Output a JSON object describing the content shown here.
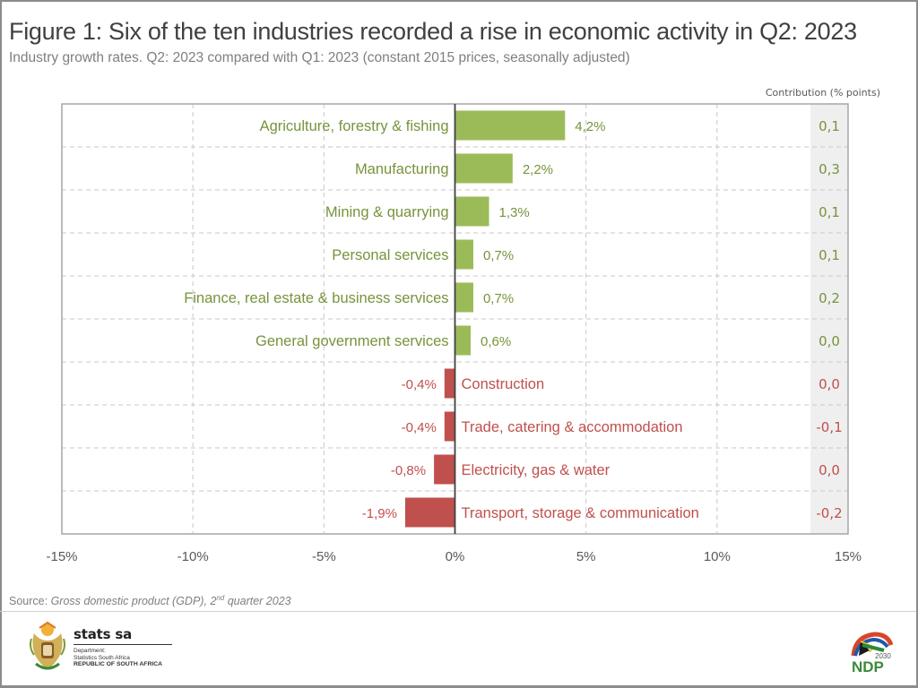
{
  "figure": {
    "title": "Figure 1: Six of the ten industries recorded a rise in economic activity in Q2: 2023",
    "subtitle": "Industry growth rates. Q2: 2023 compared with Q1: 2023 (constant 2015 prices, seasonally adjusted)",
    "contribution_header": "Contribution (% points)",
    "source_prefix": "Source: ",
    "source_title": "Gross domestic product (GDP), 2",
    "source_sup": "nd",
    "source_suffix": " quarter 2023"
  },
  "colors": {
    "positive": "#9bbb59",
    "positive_text": "#77933c",
    "negative": "#c0504d",
    "negative_text": "#c0504d",
    "grid": "#c8c8c8",
    "axis_text": "#595959",
    "contrib_bg": "#efefef"
  },
  "footer": {
    "org_name": "stats sa",
    "dept_line1": "Department:",
    "dept_line2": "Statistics South Africa",
    "dept_line3": "REPUBLIC OF SOUTH AFRICA",
    "ndp_year": "2030",
    "ndp_label": "NDP"
  },
  "chart_data": {
    "type": "bar",
    "orientation": "horizontal",
    "title": "Figure 1: Six of the ten industries recorded a rise in economic activity in Q2: 2023",
    "xlabel": "",
    "ylabel": "",
    "xlim": [
      -15,
      15
    ],
    "x_ticks": [
      -15,
      -10,
      -5,
      0,
      5,
      10,
      15
    ],
    "x_tick_labels": [
      "-15%",
      "-10%",
      "-5%",
      "0%",
      "5%",
      "10%",
      "15%"
    ],
    "grid": true,
    "categories": [
      "Agriculture, forestry & fishing",
      "Manufacturing",
      "Mining & quarrying",
      "Personal services",
      "Finance, real estate & business services",
      "General government services",
      "Construction",
      "Trade, catering & accommodation",
      "Electricity, gas & water",
      "Transport, storage & communication"
    ],
    "values": [
      4.2,
      2.2,
      1.3,
      0.7,
      0.7,
      0.6,
      -0.4,
      -0.4,
      -0.8,
      -1.9
    ],
    "value_labels": [
      "4,2%",
      "2,2%",
      "1,3%",
      "0,7%",
      "0,7%",
      "0,6%",
      "-0,4%",
      "-0,4%",
      "-0,8%",
      "-1,9%"
    ],
    "contribution_title": "Contribution (% points)",
    "contributions": [
      0.1,
      0.3,
      0.1,
      0.1,
      0.2,
      0.0,
      0.0,
      -0.1,
      0.0,
      -0.2
    ],
    "contribution_labels": [
      "0,1",
      "0,3",
      "0,1",
      "0,1",
      "0,2",
      "0,0",
      "0,0",
      "-0,1",
      "0,0",
      "-0,2"
    ]
  }
}
